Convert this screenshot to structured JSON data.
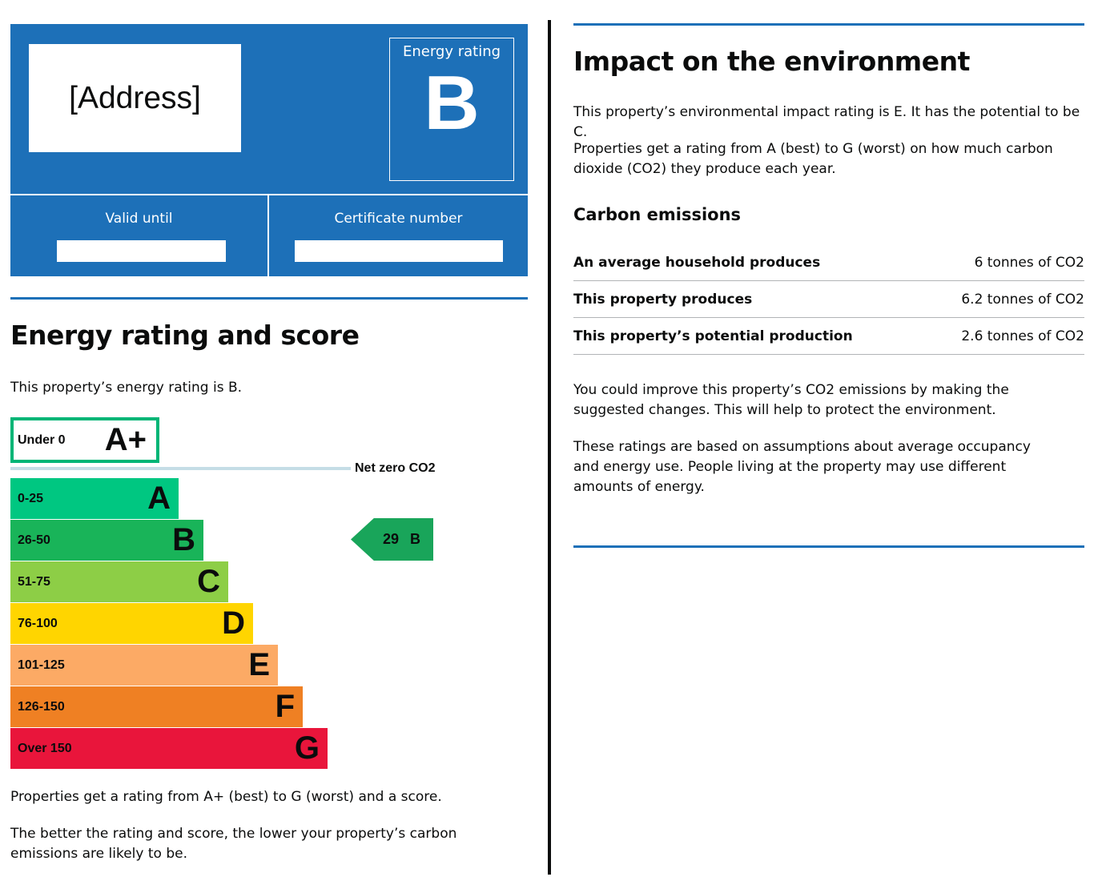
{
  "header": {
    "address": "[Address]",
    "energy_rating_label": "Energy rating",
    "energy_rating_value": "B",
    "valid_until_label": "Valid until",
    "certificate_number_label": "Certificate number"
  },
  "energy_section": {
    "title": "Energy rating and score",
    "rating_statement": "This property’s energy rating is B.",
    "net_zero_label": "Net zero CO2",
    "aplus_band": {
      "range": "Under 0",
      "letter": "A+"
    },
    "bands": [
      {
        "range": "0-25",
        "letter": "A",
        "color": "#00c781"
      },
      {
        "range": "26-50",
        "letter": "B",
        "color": "#19b459"
      },
      {
        "range": "51-75",
        "letter": "C",
        "color": "#8dce46"
      },
      {
        "range": "76-100",
        "letter": "D",
        "color": "#ffd500"
      },
      {
        "range": "101-125",
        "letter": "E",
        "color": "#fcaa65"
      },
      {
        "range": "126-150",
        "letter": "F",
        "color": "#ef8023"
      },
      {
        "range": "Over 150",
        "letter": "G",
        "color": "#e9153b"
      }
    ],
    "current": {
      "score": "29",
      "letter": "B"
    },
    "para1": "Properties get a rating from A+ (best) to G (worst) and a score.",
    "para2": "The better the rating and score, the lower your property’s carbon emissions are likely to be."
  },
  "environment_section": {
    "title": "Impact on the environment",
    "para1": "This property’s environmental impact rating is E. It has the potential to be C.",
    "para2": "Properties get a rating from A (best) to G (worst) on how much carbon dioxide (CO2) they produce each year.",
    "carbon_title": "Carbon emissions",
    "rows": [
      {
        "label": "An average household produces",
        "value": "6 tonnes of CO2"
      },
      {
        "label": "This property produces",
        "value": "6.2 tonnes of CO2"
      },
      {
        "label": "This property’s potential production",
        "value": "2.6 tonnes of CO2"
      }
    ],
    "para3": "You could improve this property’s CO2 emissions by making the suggested changes. This will help to protect the environment.",
    "para4": "These ratings are based on assumptions about average occupancy and energy use. People living at the property may use different amounts of energy."
  },
  "colors": {
    "brand_blue": "#1d70b8",
    "aplus_border": "#00b576",
    "net_zero_line": "#c5dde6",
    "marker": "#19a55a"
  }
}
